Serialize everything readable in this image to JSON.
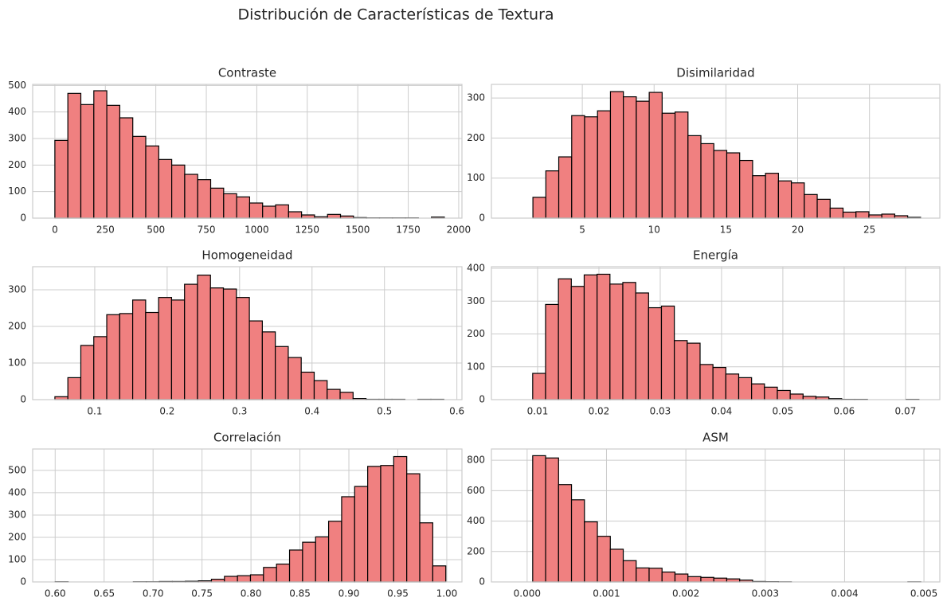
{
  "title": "Distribución de Características de Textura",
  "chart_data": [
    {
      "type": "histogram",
      "title": "Contraste",
      "color": "#f08080",
      "edgecolor": "#000000",
      "grid": true,
      "bins": [
        0,
        64.3,
        128.6,
        192.9,
        257.2,
        321.5,
        385.8,
        450.1,
        514.4,
        578.7,
        643,
        707.3,
        771.6,
        835.9,
        900.2,
        964.5,
        1028.8,
        1093.1,
        1157.4,
        1221.7,
        1286,
        1350.3,
        1414.6,
        1478.9,
        1543.2,
        1607.5,
        1671.8,
        1736.1,
        1800.4,
        1864.7,
        1929
      ],
      "values": [
        293,
        470,
        428,
        480,
        425,
        378,
        308,
        272,
        221,
        200,
        165,
        145,
        113,
        92,
        80,
        57,
        45,
        50,
        24,
        12,
        5,
        14,
        8,
        2,
        1,
        1,
        1,
        1,
        0,
        4
      ],
      "xlim": [
        -110,
        2016
      ],
      "ylim": [
        0,
        504
      ],
      "xticks": [
        0,
        250,
        500,
        750,
        1000,
        1250,
        1500,
        1750,
        2000
      ],
      "yticks": [
        0,
        100,
        200,
        300,
        400,
        500
      ]
    },
    {
      "type": "histogram",
      "title": "Disimilaridad",
      "color": "#f08080",
      "edgecolor": "#000000",
      "grid": true,
      "bins": [
        1.56,
        2.46,
        3.36,
        4.26,
        5.16,
        6.06,
        6.96,
        7.86,
        8.76,
        9.66,
        10.56,
        11.46,
        12.36,
        13.26,
        14.16,
        15.06,
        15.96,
        16.86,
        17.76,
        18.66,
        19.56,
        20.46,
        21.36,
        22.26,
        23.16,
        24.06,
        24.96,
        25.86,
        26.76,
        27.66,
        28.56
      ],
      "values": [
        52,
        118,
        153,
        256,
        253,
        268,
        316,
        303,
        292,
        314,
        262,
        265,
        206,
        186,
        169,
        163,
        144,
        106,
        112,
        93,
        88,
        59,
        47,
        25,
        15,
        16,
        8,
        10,
        6,
        2
      ],
      "xlim": [
        -1.33,
        29.9
      ],
      "ylim": [
        0,
        334
      ],
      "xticks": [
        5,
        10,
        15,
        20,
        25
      ],
      "yticks": [
        0,
        100,
        200,
        300
      ]
    },
    {
      "type": "histogram",
      "title": "Homogeneidad",
      "color": "#f08080",
      "edgecolor": "#000000",
      "grid": true,
      "bins": [
        0.045,
        0.0629,
        0.0808,
        0.0987,
        0.1166,
        0.1345,
        0.1524,
        0.1703,
        0.1882,
        0.2061,
        0.224,
        0.2419,
        0.2598,
        0.2777,
        0.2956,
        0.3135,
        0.3314,
        0.3493,
        0.3672,
        0.3851,
        0.403,
        0.4209,
        0.4388,
        0.4567,
        0.4746,
        0.4925,
        0.5104,
        0.5283,
        0.5462,
        0.5641,
        0.582
      ],
      "values": [
        8,
        60,
        148,
        172,
        232,
        235,
        272,
        238,
        279,
        272,
        315,
        340,
        305,
        302,
        279,
        215,
        185,
        145,
        115,
        75,
        52,
        28,
        20,
        3,
        1,
        1,
        1,
        0,
        1,
        1
      ],
      "xlim": [
        0.0143,
        0.607
      ],
      "ylim": [
        0,
        363
      ],
      "xticks": [
        0.1,
        0.2,
        0.3,
        0.4,
        0.5,
        0.6
      ],
      "yticks": [
        0,
        100,
        200,
        300
      ]
    },
    {
      "type": "histogram",
      "title": "Energía",
      "color": "#f08080",
      "edgecolor": "#000000",
      "grid": true,
      "bins": [
        0.0092,
        0.0113,
        0.0134,
        0.0155,
        0.0176,
        0.0197,
        0.0218,
        0.0239,
        0.026,
        0.0281,
        0.0302,
        0.0323,
        0.0344,
        0.0365,
        0.0386,
        0.0407,
        0.0428,
        0.0449,
        0.047,
        0.0491,
        0.0512,
        0.0533,
        0.0554,
        0.0575,
        0.0596,
        0.0617,
        0.0638,
        0.0659,
        0.068,
        0.0701,
        0.0722
      ],
      "values": [
        80,
        290,
        368,
        345,
        380,
        382,
        352,
        357,
        325,
        280,
        285,
        180,
        172,
        107,
        98,
        78,
        67,
        48,
        38,
        28,
        17,
        10,
        8,
        3,
        1,
        1,
        0,
        0,
        0,
        1
      ],
      "xlim": [
        0.00247,
        0.0756
      ],
      "ylim": [
        0,
        405
      ],
      "xticks": [
        0.01,
        0.02,
        0.03,
        0.04,
        0.05,
        0.06,
        0.07
      ],
      "yticks": [
        0,
        100,
        200,
        300,
        400
      ]
    },
    {
      "type": "histogram",
      "title": "Correlación",
      "color": "#f08080",
      "edgecolor": "#000000",
      "grid": true,
      "bins": [
        0.6,
        0.6133,
        0.6266,
        0.6399,
        0.6532,
        0.6665,
        0.6798,
        0.6931,
        0.7064,
        0.7197,
        0.733,
        0.7463,
        0.7596,
        0.7729,
        0.7862,
        0.7995,
        0.8128,
        0.8261,
        0.8394,
        0.8527,
        0.866,
        0.8793,
        0.8926,
        0.9059,
        0.9192,
        0.9325,
        0.9458,
        0.9591,
        0.9724,
        0.9857,
        0.999
      ],
      "values": [
        1,
        0,
        0,
        0,
        0,
        0,
        1,
        1,
        2,
        2,
        3,
        5,
        12,
        25,
        28,
        32,
        65,
        80,
        143,
        178,
        202,
        272,
        382,
        428,
        518,
        522,
        562,
        485,
        265,
        72
      ],
      "xlim": [
        0.577,
        1.0155
      ],
      "ylim": [
        0,
        596
      ],
      "xticks": [
        {
          "value": 0.6,
          "label": "0.60"
        },
        0.65,
        {
          "value": 0.7,
          "label": "0.70"
        },
        0.75,
        {
          "value": 0.8,
          "label": "0.80"
        },
        0.85,
        {
          "value": 0.9,
          "label": "0.90"
        },
        0.95,
        {
          "value": 1,
          "label": "1.00"
        }
      ],
      "yticks": [
        0,
        100,
        200,
        300,
        400,
        500
      ]
    },
    {
      "type": "histogram",
      "title": "ASM",
      "color": "#f08080",
      "edgecolor": "#000000",
      "grid": true,
      "bins": [
        7e-05,
        0.000233,
        0.000396,
        0.000559,
        0.000722,
        0.000885,
        0.001048,
        0.001211,
        0.001374,
        0.001537,
        0.0017,
        0.001863,
        0.002026,
        0.002189,
        0.002352,
        0.002515,
        0.002678,
        0.002841,
        0.003004,
        0.003167,
        0.00333,
        0.003493,
        0.003656,
        0.003819,
        0.003982,
        0.004145,
        0.004308,
        0.004471,
        0.004634,
        0.004797,
        0.00496
      ],
      "values": [
        830,
        815,
        640,
        540,
        395,
        300,
        215,
        140,
        92,
        90,
        65,
        52,
        35,
        30,
        25,
        20,
        12,
        3,
        2,
        1,
        0,
        0,
        0,
        0,
        0,
        0,
        0,
        0,
        0,
        1
      ],
      "xlim": [
        -0.00045,
        0.0052
      ],
      "ylim": [
        0,
        874
      ],
      "xticks": [
        {
          "value": 0,
          "label": "0.000"
        },
        {
          "value": 0.001,
          "label": "0.001"
        },
        {
          "value": 0.002,
          "label": "0.002"
        },
        {
          "value": 0.003,
          "label": "0.003"
        },
        {
          "value": 0.004,
          "label": "0.004"
        },
        {
          "value": 0.005,
          "label": "0.005"
        }
      ],
      "yticks": [
        0,
        200,
        400,
        600,
        800
      ]
    }
  ]
}
